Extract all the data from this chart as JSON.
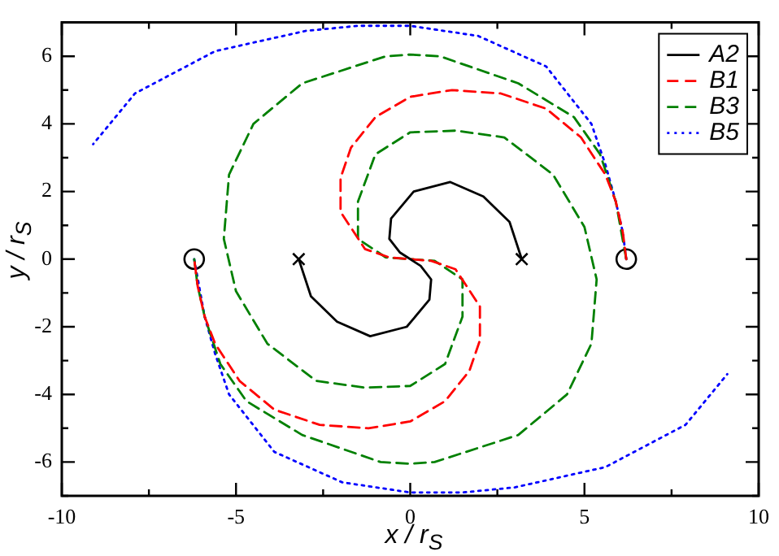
{
  "chart_data": {
    "type": "line",
    "xlabel": "x / r$_{S}$",
    "ylabel": "y / r$_{S}$",
    "xlim": [
      -10,
      10
    ],
    "ylim": [
      -7,
      7
    ],
    "xticks": [
      -10,
      {
        "value": -7.5,
        "label": null
      },
      -5,
      {
        "value": -2.5,
        "label": null
      },
      0,
      {
        "value": 2.5,
        "label": null
      },
      5,
      {
        "value": 7.5,
        "label": null
      },
      10
    ],
    "yticks": [
      {
        "value": -7,
        "label": null
      },
      -6,
      {
        "value": -5,
        "label": null
      },
      -4,
      {
        "value": -3,
        "label": null
      },
      -2,
      {
        "value": -1,
        "label": null
      },
      0,
      {
        "value": 1,
        "label": null
      },
      2,
      {
        "value": 3,
        "label": null
      },
      4,
      {
        "value": 5,
        "label": null
      },
      6,
      {
        "value": 7,
        "label": null
      }
    ],
    "grid": false,
    "legend": "top right",
    "marker": "none",
    "series": [
      {
        "name": "A2",
        "color": "#000000",
        "line_style": "solid",
        "x": [
          3.2,
          2.85,
          2.1,
          1.15,
          0.1,
          -0.55,
          -0.6,
          -0.3,
          0,
          0.3,
          0.6,
          0.55,
          -0.1,
          -1.15,
          -2.1,
          -2.85,
          -3.2
        ],
        "values": [
          0,
          1.1,
          1.85,
          2.28,
          2.0,
          1.2,
          0.6,
          0.2,
          0,
          -0.2,
          -0.6,
          -1.2,
          -2.0,
          -2.28,
          -1.85,
          -1.1,
          0
        ]
      },
      {
        "name": "B1",
        "color": "#ff0000",
        "line_style": "dashed",
        "x": [
          6.2,
          6.1,
          5.9,
          5.6,
          4.9,
          3.9,
          2.6,
          1.2,
          0,
          -1.0,
          -1.7,
          -2.0,
          -2.0,
          -1.3,
          -0.6,
          0,
          0.6,
          1.3,
          2.0,
          2.0,
          1.7,
          1.0,
          0,
          -1.2,
          -2.6,
          -3.9,
          -4.9,
          -5.6,
          -5.9,
          -6.1,
          -6.2
        ],
        "values": [
          0,
          0.8,
          1.7,
          2.5,
          3.6,
          4.45,
          4.9,
          5.0,
          4.8,
          4.2,
          3.3,
          2.4,
          1.4,
          0.3,
          0.05,
          0,
          -0.05,
          -0.3,
          -1.4,
          -2.4,
          -3.3,
          -4.2,
          -4.8,
          -5.0,
          -4.9,
          -4.45,
          -3.6,
          -2.5,
          -1.7,
          -0.8,
          0
        ]
      },
      {
        "name": "B3",
        "color": "#008000",
        "line_style": "dashed",
        "x": [
          6.2,
          5.9,
          5.45,
          4.7,
          3.1,
          0.85,
          0,
          -0.7,
          -3.1,
          -4.5,
          -5.2,
          -5.35,
          -5.0,
          -4.1,
          -2.7,
          -1.3,
          0,
          1.0,
          1.5,
          1.5,
          0.7,
          0,
          -0.7,
          -1.5,
          -1.5,
          -1.0,
          0,
          1.3,
          2.7,
          4.1,
          5.0,
          5.35,
          5.2,
          4.5,
          3.1,
          0.7,
          0,
          -0.85,
          -3.1,
          -4.7,
          -5.45,
          -5.9,
          -6.1,
          -6.2
        ],
        "values": [
          0,
          1.7,
          3.1,
          4.2,
          5.2,
          6.0,
          6.05,
          6.0,
          5.2,
          4.0,
          2.5,
          0.6,
          -0.95,
          -2.5,
          -3.6,
          -3.8,
          -3.75,
          -3.1,
          -1.7,
          -0.6,
          -0.05,
          0,
          0.05,
          0.6,
          1.7,
          3.1,
          3.75,
          3.8,
          3.6,
          2.5,
          0.95,
          -0.6,
          -2.5,
          -4.0,
          -5.2,
          -6.0,
          -6.05,
          -6.0,
          -5.2,
          -4.2,
          -3.1,
          -1.7,
          -0.8,
          0
        ]
      },
      {
        "name": "B5",
        "color": "#0000ff",
        "line_style": "dotted",
        "x": [
          6.2,
          6.1,
          5.9,
          5.6,
          5.2,
          3.9,
          1.95,
          0,
          -1.5,
          -3.0,
          -5.6,
          -7.9,
          -9.1,
          null,
          -6.2,
          -5.9,
          -5.6,
          -5.2,
          -3.9,
          -1.95,
          0,
          1.5,
          3.0,
          5.6,
          7.9,
          9.1
        ],
        "values": [
          0,
          0.8,
          1.7,
          2.8,
          4.0,
          5.7,
          6.6,
          6.9,
          6.9,
          6.75,
          6.15,
          4.9,
          3.4,
          null,
          0,
          -1.7,
          -2.8,
          -4.0,
          -5.7,
          -6.6,
          -6.9,
          -6.9,
          -6.75,
          -6.15,
          -4.9,
          -3.4
        ]
      },
      {
        "type": "scatter",
        "marker": "cross",
        "color": "#000000",
        "x": [
          -3.2,
          3.2
        ],
        "values": [
          0,
          0
        ]
      },
      {
        "type": "scatter",
        "marker": "circle",
        "color": "#000000",
        "x": [
          -6.2,
          6.2
        ],
        "values": [
          0,
          0
        ]
      }
    ]
  }
}
